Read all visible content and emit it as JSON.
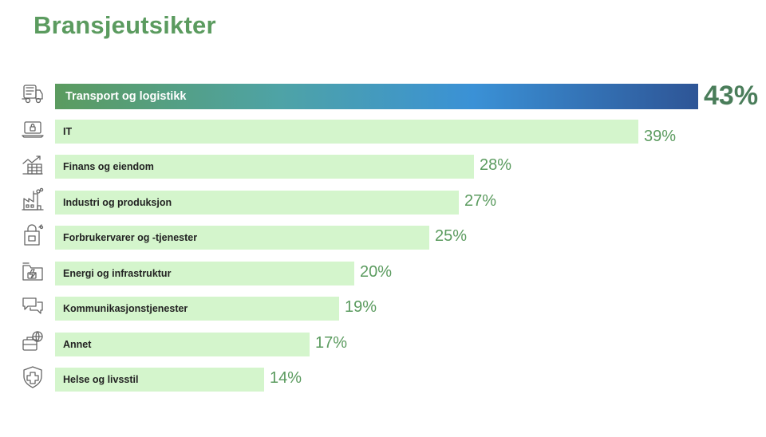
{
  "title": "Bransjeutsikter",
  "chart_data": {
    "type": "bar",
    "orientation": "horizontal",
    "title": "Bransjeutsikter",
    "xlabel": "",
    "ylabel": "",
    "unit": "%",
    "grid": false,
    "xlim": [
      0,
      43
    ],
    "categories": [
      "Transport og logistikk",
      "IT",
      "Finans og eiendom",
      "Industri og produksjon",
      "Forbrukervarer og -tjenester",
      "Energi og infrastruktur",
      "Kommunikasjonstjenester",
      "Annet",
      "Helse og livsstil"
    ],
    "values": [
      43,
      39,
      28,
      27,
      25,
      20,
      19,
      17,
      14
    ],
    "value_labels": [
      "43%",
      "39%",
      "28%",
      "27%",
      "25%",
      "20%",
      "19%",
      "17%",
      "14%"
    ],
    "icons": [
      "truck-icon",
      "laptop-lock-icon",
      "growth-chart-building-icon",
      "factory-icon",
      "shopping-bag-icon",
      "energy-folder-icon",
      "chat-bubbles-icon",
      "briefcase-globe-icon",
      "health-shield-icon"
    ],
    "highlight_index": 0
  },
  "colors": {
    "title": "#5b9b5f",
    "bar": "#d4f5cc",
    "value_text": "#5b9b5f",
    "highlight_value_text": "#4a7d5a",
    "highlight_gradient": [
      "#5b9b5f",
      "#4ea3a6",
      "#3a91d6",
      "#2e5596"
    ],
    "icon_stroke": "#666666"
  }
}
